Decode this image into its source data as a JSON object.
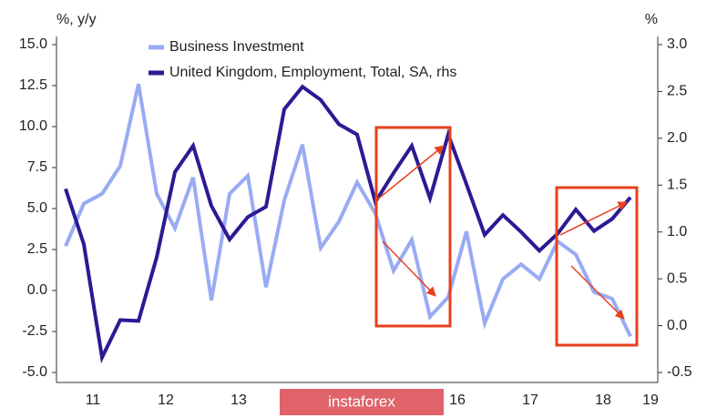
{
  "chart_data": {
    "type": "line",
    "y_axis_label": "%, y/y",
    "y2_axis_label": "%",
    "watermark": "instaforex",
    "xlim": [
      11,
      19.25
    ],
    "xticks": [
      {
        "value": 11.5,
        "label": "11"
      },
      {
        "value": 12.5,
        "label": "12"
      },
      {
        "value": 13.5,
        "label": "13"
      },
      {
        "value": 16.5,
        "label": "16"
      },
      {
        "value": 17.5,
        "label": "17"
      },
      {
        "value": 18.5,
        "label": "18"
      },
      {
        "value": 19.15,
        "label": "19"
      }
    ],
    "ylim": [
      -5,
      15
    ],
    "yticks": [
      {
        "value": 15,
        "label": "15.0"
      },
      12.5,
      {
        "value": 10,
        "label": "10.0"
      },
      7.5,
      {
        "value": 5,
        "label": "5.0"
      },
      2.5,
      {
        "value": 0,
        "label": "0.0"
      },
      -2.5,
      {
        "value": -5,
        "label": "-5.0"
      }
    ],
    "y2lim": [
      -0.5,
      3
    ],
    "y2ticks": [
      {
        "value": 3,
        "label": "3.0"
      },
      2.5,
      {
        "value": 2,
        "label": "2.0"
      },
      1.5,
      {
        "value": 1,
        "label": "1.0"
      },
      0.5,
      {
        "value": 0,
        "label": "0.0"
      },
      -0.5
    ],
    "grid": false,
    "x": [
      11.125,
      11.375,
      11.625,
      11.875,
      12.125,
      12.375,
      12.625,
      12.875,
      13.125,
      13.375,
      13.625,
      13.875,
      14.125,
      14.375,
      14.625,
      14.875,
      15.125,
      15.375,
      15.625,
      15.875,
      16.125,
      16.375,
      16.625,
      16.875,
      17.125,
      17.375,
      17.625,
      17.875,
      18.125,
      18.375,
      18.625,
      18.875
    ],
    "series": [
      {
        "name": "Business Investment",
        "color": "#99abf3",
        "axis": "y",
        "values": [
          2.7,
          5.3,
          5.9,
          7.6,
          12.6,
          5.9,
          3.8,
          6.9,
          -0.6,
          5.9,
          7.0,
          0.2,
          5.5,
          8.9,
          2.6,
          4.2,
          6.6,
          4.7,
          1.2,
          3.1,
          -1.6,
          -0.4,
          3.6,
          -2.0,
          0.7,
          1.6,
          0.7,
          3.0,
          2.2,
          -0.1,
          -0.5,
          -2.8
        ]
      },
      {
        "name": "United Kingdom, Employment, Total, SA, rhs",
        "color": "#2c1a94",
        "axis": "y2",
        "values": [
          1.46,
          0.87,
          -0.34,
          0.06,
          0.05,
          0.73,
          1.64,
          1.92,
          1.28,
          0.92,
          1.16,
          1.27,
          2.31,
          2.55,
          2.41,
          2.15,
          2.04,
          1.32,
          1.63,
          1.92,
          1.36,
          2.04,
          1.51,
          0.97,
          1.18,
          1.0,
          0.8,
          0.98,
          1.24,
          1.01,
          1.14,
          1.37
        ]
      }
    ]
  }
}
